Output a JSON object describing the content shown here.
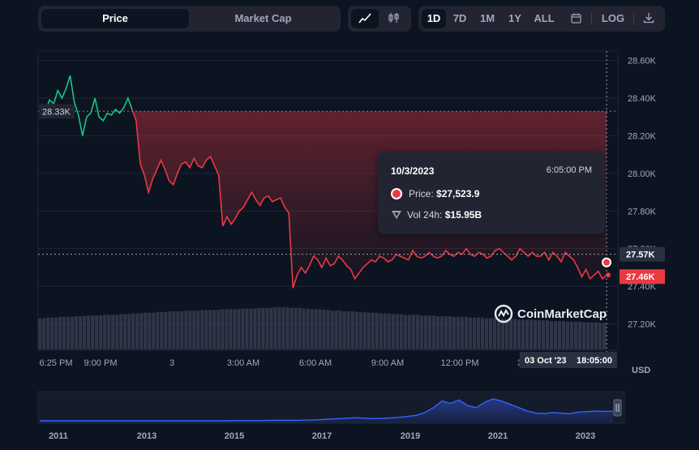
{
  "toolbar": {
    "price": "Price",
    "market_cap": "Market Cap",
    "ranges": [
      "1D",
      "7D",
      "1M",
      "1Y",
      "ALL"
    ],
    "log": "LOG"
  },
  "tooltip": {
    "date": "10/3/2023",
    "time": "6:05:00 PM",
    "price_label": "Price:",
    "price_value": "$27,523.9",
    "vol_label": "Vol 24h:",
    "vol_value": "$15.95B"
  },
  "brand": "CoinMarketCap",
  "colors": {
    "up": "#16c784",
    "down": "#ea3943",
    "background": "#0d1421",
    "panel": "#222531",
    "navigator": "#3861fb"
  },
  "chart_data": {
    "type": "line",
    "x_tick_labels": [
      "6:25 PM",
      "9:00 PM",
      "3",
      "3:00 AM",
      "6:00 AM",
      "9:00 AM",
      "12:00 PM",
      "3"
    ],
    "y_tick_labels": [
      "28.60K",
      "28.40K",
      "28.20K",
      "28.00K",
      "27.80K",
      "27.60K",
      "27.40K",
      "27.20K"
    ],
    "y_ticks": [
      28600,
      28400,
      28200,
      28000,
      27800,
      27600,
      27400,
      27200
    ],
    "ylim": [
      27060,
      28650
    ],
    "baseline": 28330,
    "baseline_label": "28.33K",
    "crosshair_value": 27570,
    "crosshair_label": "27.57K",
    "last_value": 27460,
    "last_label": "27.46K",
    "hover_date_label": "03 Oct '23",
    "hover_time_label": "18:05:00",
    "unit_label": "USD",
    "price_points": [
      [
        0,
        28330
      ],
      [
        1,
        28390
      ],
      [
        2,
        28370
      ],
      [
        3,
        28440
      ],
      [
        4,
        28400
      ],
      [
        5,
        28450
      ],
      [
        6,
        28520
      ],
      [
        7,
        28380
      ],
      [
        8,
        28310
      ],
      [
        9,
        28200
      ],
      [
        10,
        28300
      ],
      [
        11,
        28320
      ],
      [
        12,
        28400
      ],
      [
        13,
        28300
      ],
      [
        14,
        28280
      ],
      [
        15,
        28320
      ],
      [
        16,
        28310
      ],
      [
        17,
        28340
      ],
      [
        18,
        28320
      ],
      [
        19,
        28350
      ],
      [
        20,
        28400
      ],
      [
        21,
        28340
      ],
      [
        22,
        28280
      ],
      [
        23,
        28050
      ],
      [
        24,
        27990
      ],
      [
        25,
        27900
      ],
      [
        26,
        27970
      ],
      [
        27,
        28020
      ],
      [
        28,
        28070
      ],
      [
        29,
        28020
      ],
      [
        30,
        27960
      ],
      [
        31,
        27940
      ],
      [
        32,
        28000
      ],
      [
        33,
        28050
      ],
      [
        34,
        28060
      ],
      [
        35,
        28030
      ],
      [
        36,
        28080
      ],
      [
        37,
        28040
      ],
      [
        38,
        28030
      ],
      [
        39,
        28070
      ],
      [
        40,
        28090
      ],
      [
        41,
        28040
      ],
      [
        42,
        27990
      ],
      [
        43,
        27720
      ],
      [
        44,
        27770
      ],
      [
        45,
        27730
      ],
      [
        46,
        27760
      ],
      [
        47,
        27800
      ],
      [
        48,
        27820
      ],
      [
        49,
        27860
      ],
      [
        50,
        27900
      ],
      [
        51,
        27860
      ],
      [
        52,
        27830
      ],
      [
        53,
        27870
      ],
      [
        54,
        27880
      ],
      [
        55,
        27850
      ],
      [
        56,
        27860
      ],
      [
        57,
        27870
      ],
      [
        58,
        27820
      ],
      [
        59,
        27790
      ],
      [
        60,
        27390
      ],
      [
        61,
        27460
      ],
      [
        62,
        27500
      ],
      [
        63,
        27470
      ],
      [
        64,
        27510
      ],
      [
        65,
        27560
      ],
      [
        66,
        27540
      ],
      [
        67,
        27500
      ],
      [
        68,
        27550
      ],
      [
        69,
        27510
      ],
      [
        70,
        27520
      ],
      [
        71,
        27560
      ],
      [
        72,
        27540
      ],
      [
        73,
        27510
      ],
      [
        74,
        27490
      ],
      [
        75,
        27440
      ],
      [
        76,
        27470
      ],
      [
        77,
        27500
      ],
      [
        78,
        27520
      ],
      [
        79,
        27540
      ],
      [
        80,
        27530
      ],
      [
        81,
        27560
      ],
      [
        82,
        27550
      ],
      [
        83,
        27530
      ],
      [
        84,
        27540
      ],
      [
        85,
        27570
      ],
      [
        86,
        27560
      ],
      [
        87,
        27550
      ],
      [
        88,
        27540
      ],
      [
        89,
        27590
      ],
      [
        90,
        27560
      ],
      [
        91,
        27550
      ],
      [
        92,
        27560
      ],
      [
        93,
        27580
      ],
      [
        94,
        27560
      ],
      [
        95,
        27550
      ],
      [
        96,
        27560
      ],
      [
        97,
        27590
      ],
      [
        98,
        27570
      ],
      [
        99,
        27560
      ],
      [
        100,
        27580
      ],
      [
        101,
        27570
      ],
      [
        102,
        27600
      ],
      [
        103,
        27570
      ],
      [
        104,
        27560
      ],
      [
        105,
        27580
      ],
      [
        106,
        27570
      ],
      [
        107,
        27550
      ],
      [
        108,
        27560
      ],
      [
        109,
        27590
      ],
      [
        110,
        27600
      ],
      [
        111,
        27580
      ],
      [
        112,
        27560
      ],
      [
        113,
        27540
      ],
      [
        114,
        27560
      ],
      [
        115,
        27600
      ],
      [
        116,
        27580
      ],
      [
        117,
        27560
      ],
      [
        118,
        27580
      ],
      [
        119,
        27560
      ],
      [
        120,
        27560
      ],
      [
        121,
        27580
      ],
      [
        122,
        27540
      ],
      [
        123,
        27580
      ],
      [
        124,
        27560
      ],
      [
        125,
        27530
      ],
      [
        126,
        27580
      ],
      [
        127,
        27560
      ],
      [
        128,
        27540
      ],
      [
        129,
        27500
      ],
      [
        130,
        27450
      ],
      [
        131,
        27490
      ],
      [
        132,
        27440
      ],
      [
        133,
        27460
      ],
      [
        134,
        27480
      ],
      [
        135,
        27440
      ],
      [
        136,
        27460
      ]
    ],
    "up_segment_end_index": 21,
    "volume": [
      0.45,
      0.45,
      0.46,
      0.46,
      0.46,
      0.47,
      0.47,
      0.47,
      0.47,
      0.48,
      0.48,
      0.48,
      0.49,
      0.49,
      0.49,
      0.49,
      0.5,
      0.5,
      0.5,
      0.5,
      0.51,
      0.51,
      0.51,
      0.52,
      0.52,
      0.52,
      0.53,
      0.53,
      0.53,
      0.54,
      0.54,
      0.54,
      0.55,
      0.55,
      0.55,
      0.55,
      0.56,
      0.56,
      0.56,
      0.56,
      0.57,
      0.57,
      0.57,
      0.57,
      0.57,
      0.58,
      0.58,
      0.58,
      0.58,
      0.58,
      0.59,
      0.59,
      0.59,
      0.59,
      0.6,
      0.6,
      0.6,
      0.6,
      0.61,
      0.61,
      0.61,
      0.61,
      0.6,
      0.6,
      0.6,
      0.59,
      0.59,
      0.58,
      0.58,
      0.58,
      0.57,
      0.57,
      0.56,
      0.56,
      0.56,
      0.55,
      0.55,
      0.55,
      0.54,
      0.54,
      0.54,
      0.53,
      0.53,
      0.53,
      0.52,
      0.52,
      0.52,
      0.51,
      0.51,
      0.51,
      0.5,
      0.5,
      0.5,
      0.5,
      0.49,
      0.49,
      0.49,
      0.49,
      0.48,
      0.48,
      0.48,
      0.48,
      0.47,
      0.47,
      0.47,
      0.47,
      0.46,
      0.46,
      0.46,
      0.46,
      0.45,
      0.45,
      0.45,
      0.45,
      0.44,
      0.44,
      0.44,
      0.44,
      0.43,
      0.43,
      0.43,
      0.43,
      0.42,
      0.42,
      0.42,
      0.42,
      0.41,
      0.41,
      0.41,
      0.41,
      0.4,
      0.4,
      0.4,
      0.4,
      0.39,
      0.39,
      0.39,
      0.39,
      0.38,
      0.38
    ],
    "navigator": {
      "x_tick_labels": [
        "2011",
        "2013",
        "2015",
        "2017",
        "2019",
        "2021",
        "2023"
      ],
      "series": [
        0,
        0,
        0,
        0,
        0,
        0,
        0,
        0,
        0,
        0,
        0,
        0,
        0,
        0,
        0,
        0,
        0,
        0,
        0,
        0,
        0,
        0,
        0,
        0.01,
        0.01,
        0.01,
        0.01,
        0.02,
        0.02,
        0.02,
        0.02,
        0.03,
        0.04,
        0.06,
        0.08,
        0.1,
        0.12,
        0.14,
        0.12,
        0.1,
        0.11,
        0.13,
        0.16,
        0.2,
        0.25,
        0.38,
        0.6,
        0.9,
        0.8,
        0.95,
        0.7,
        0.6,
        0.85,
        1.0,
        0.9,
        0.75,
        0.6,
        0.45,
        0.35,
        0.33,
        0.38,
        0.35,
        0.33,
        0.4,
        0.42,
        0.45,
        0.43,
        0.44
      ]
    }
  }
}
